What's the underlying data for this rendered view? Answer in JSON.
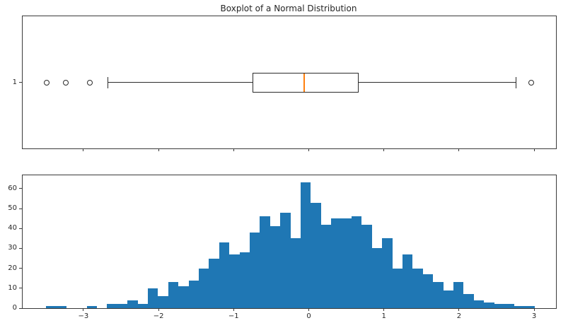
{
  "figure": {
    "title": "Boxplot of a Normal Distribution",
    "background": "#ffffff",
    "spine_color": "#3a3a3a",
    "text_color": "#262626"
  },
  "chart_data": [
    {
      "type": "boxplot",
      "title": "Boxplot of a Normal Distribution",
      "orientation": "horizontal",
      "position": 1,
      "position_label": "1",
      "stats": {
        "whisker_low": -2.67,
        "q1": -0.75,
        "median": -0.06,
        "q3": 0.66,
        "whisker_high": 2.76
      },
      "outliers": [
        -3.49,
        -3.23,
        -2.91,
        2.96
      ],
      "xlim": [
        -3.809,
        3.291
      ],
      "xticks": [
        -3,
        -2,
        -1,
        0,
        1,
        2,
        3
      ],
      "xtick_labels": [
        "",
        "",
        "",
        "",
        "",
        "",
        ""
      ],
      "xtick_labels_shown": false,
      "yticks": [
        1
      ],
      "ytick_labels": [
        "1"
      ],
      "grid": false,
      "colors": {
        "line": "#2b2b2b",
        "median": "#ff7f0e",
        "box_fill": "#ffffff"
      }
    },
    {
      "type": "histogram",
      "bin_start": -3.498,
      "bin_width": 0.1356,
      "counts": [
        1,
        1,
        0,
        0,
        1,
        0,
        2,
        2,
        4,
        2,
        10,
        6,
        13,
        11,
        14,
        20,
        25,
        33,
        27,
        28,
        38,
        46,
        41,
        48,
        35,
        63,
        53,
        42,
        45,
        45,
        46,
        42,
        30,
        35,
        20,
        27,
        20,
        17,
        13,
        9,
        13,
        7,
        4,
        3,
        2,
        2,
        1,
        1
      ],
      "xlim": [
        -3.809,
        3.291
      ],
      "ylim": [
        0,
        66.7
      ],
      "xticks": [
        -3,
        -2,
        -1,
        0,
        1,
        2,
        3
      ],
      "xtick_labels": [
        "−3",
        "−2",
        "−1",
        "0",
        "1",
        "2",
        "3"
      ],
      "yticks": [
        0,
        10,
        20,
        30,
        40,
        50,
        60
      ],
      "ytick_labels": [
        "0",
        "10",
        "20",
        "30",
        "40",
        "50",
        "60"
      ],
      "grid": false,
      "legend": null,
      "bar_color": "#1f77b4"
    }
  ]
}
